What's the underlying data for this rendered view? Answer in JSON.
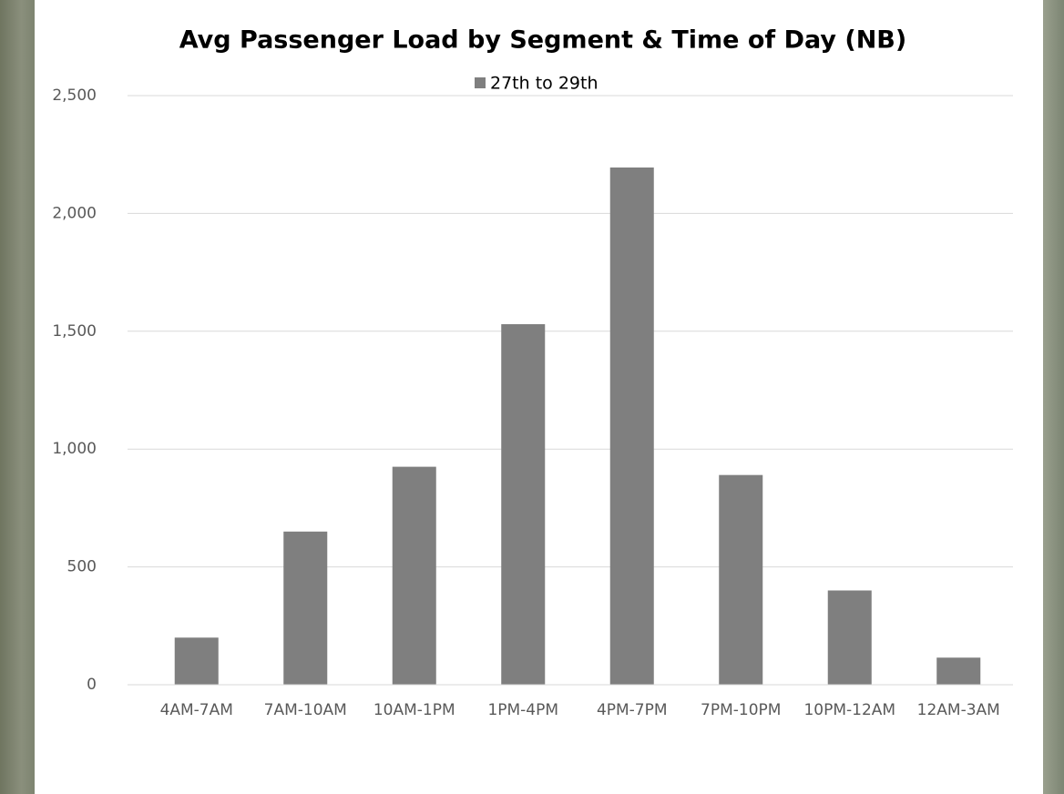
{
  "chart_data": {
    "type": "bar",
    "title": "Avg Passenger Load by Segment & Time of Day (NB)",
    "categories": [
      "4AM-7AM",
      "7AM-10AM",
      "10AM-1PM",
      "1PM-4PM",
      "4PM-7PM",
      "7PM-10PM",
      "10PM-12AM",
      "12AM-3AM"
    ],
    "series": [
      {
        "name": "27th to 29th",
        "color": "#7f7f7f",
        "values": [
          200,
          650,
          925,
          1530,
          2195,
          890,
          400,
          115
        ]
      }
    ],
    "ylim": [
      0,
      2500
    ],
    "yticks": [
      0,
      500,
      {
        "value": 1000,
        "label": "1,000"
      },
      {
        "value": 1500,
        "label": "1,500"
      },
      {
        "value": 2000,
        "label": "2,000"
      },
      {
        "value": 2500,
        "label": "2,500"
      }
    ],
    "grid": true,
    "legend": "top"
  }
}
